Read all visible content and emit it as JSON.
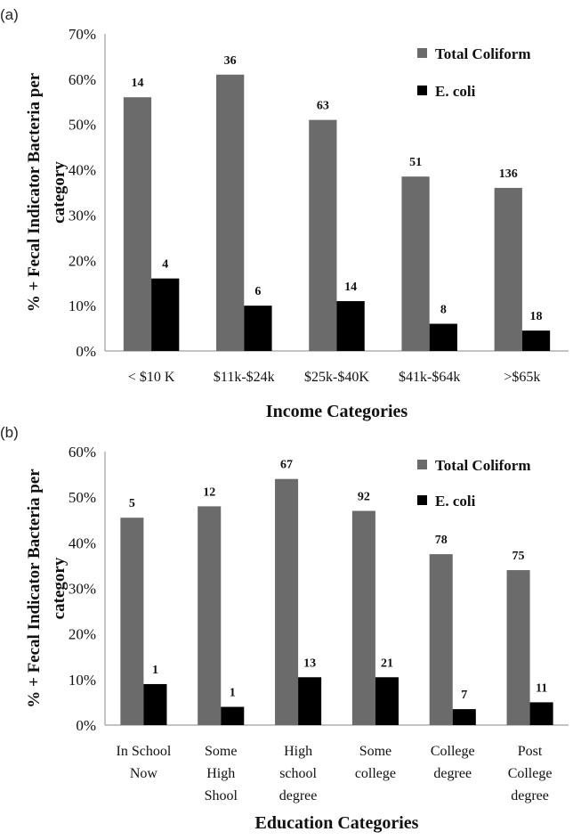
{
  "chart_data": [
    {
      "panel": "(a)",
      "type": "bar",
      "categories": [
        "< $10 K",
        "$11k-$24k",
        "$25k-$40K",
        "$41k-$64k",
        ">$65k"
      ],
      "series": [
        {
          "name": "Total Coliform",
          "color": "#6b6b6b",
          "values": [
            56,
            61,
            51,
            38.5,
            36
          ],
          "labels": [
            "14",
            "36",
            "63",
            "51",
            "136"
          ]
        },
        {
          "name": "E. coli",
          "color": "#000000",
          "values": [
            16,
            10,
            11,
            6,
            4.5
          ],
          "labels": [
            "4",
            "6",
            "14",
            "8",
            "18"
          ]
        }
      ],
      "yticks": [
        "0%",
        "10%",
        "20%",
        "30%",
        "40%",
        "50%",
        "60%",
        "70%"
      ],
      "ylim": [
        0,
        70
      ],
      "xlabel": "Income Categories",
      "ylabel": "% + Fecal Indicator Bacteria per category",
      "legend": "top-right"
    },
    {
      "panel": "(b)",
      "type": "bar",
      "categories": [
        "In School Now",
        "Some High Shool",
        "High school degree",
        "Some college",
        "College degree",
        "Post College degree"
      ],
      "series": [
        {
          "name": "Total Coliform",
          "color": "#6b6b6b",
          "values": [
            45.5,
            48,
            54,
            47,
            37.5,
            34
          ],
          "labels": [
            "5",
            "12",
            "67",
            "92",
            "78",
            "75"
          ]
        },
        {
          "name": "E. coli",
          "color": "#000000",
          "values": [
            9,
            4,
            10.5,
            10.5,
            3.5,
            5
          ],
          "labels": [
            "1",
            "1",
            "13",
            "21",
            "7",
            "11"
          ]
        }
      ],
      "yticks": [
        "0%",
        "10%",
        "20%",
        "30%",
        "40%",
        "50%",
        "60%"
      ],
      "ylim": [
        0,
        60
      ],
      "xlabel": "Education Categories",
      "ylabel": "% + Fecal Indicator Bacteria per category",
      "legend": "top-right"
    }
  ]
}
